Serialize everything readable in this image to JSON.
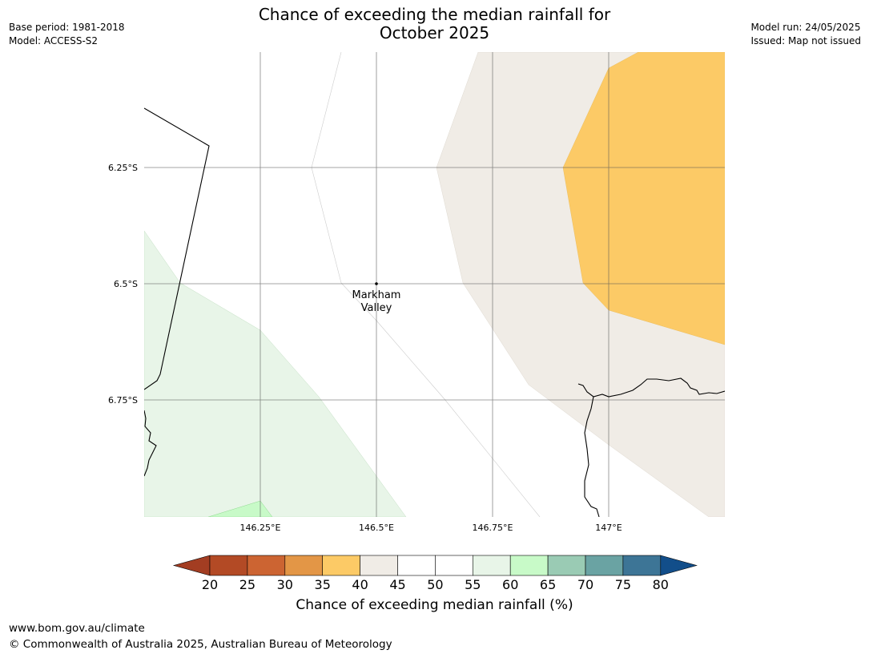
{
  "header": {
    "title_line1": "Chance of exceeding the median rainfall for",
    "title_line2": "October 2025",
    "base_period": "Base period: 1981-2018",
    "model": "Model: ACCESS-S2",
    "model_run": "Model run: 24/05/2025",
    "issued": "Issued: Map not issued"
  },
  "map": {
    "place_name_line1": "Markham",
    "place_name_line2": "Valley",
    "lat_ticks": [
      "6.25°S",
      "6.5°S",
      "6.75°S"
    ],
    "lon_ticks": [
      "146.25°E",
      "146.5°E",
      "146.75°E",
      "147°E"
    ]
  },
  "colorbar": {
    "labels": [
      "20",
      "25",
      "30",
      "35",
      "40",
      "45",
      "50",
      "55",
      "60",
      "65",
      "70",
      "75",
      "80"
    ],
    "colors": [
      "#b34a25",
      "#cc6432",
      "#e39646",
      "#fcca66",
      "#f0ece6",
      "#ffffff",
      "#ffffff",
      "#e8f5e8",
      "#c8fac8",
      "#9acbb4",
      "#6aa3a3",
      "#3d7596"
    ],
    "low_arrow_color": "#a33d22",
    "high_arrow_color": "#124e8a",
    "title": "Chance of exceeding median rainfall (%)"
  },
  "footer": {
    "url": "www.bom.gov.au/climate",
    "copyright": "© Commonwealth of Australia 2025, Australian Bureau of Meteorology"
  }
}
